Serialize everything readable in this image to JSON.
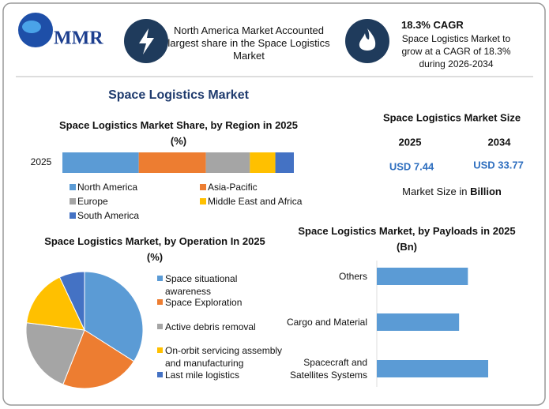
{
  "header": {
    "logo": "MMR",
    "highlight": "North America Market Accounted largest share in the Space Logistics Market",
    "cagr_title": "18.3% CAGR",
    "cagr_text": "Space Logistics Market to grow at a CAGR of 18.3% during 2026-2034"
  },
  "title": "Space Logistics Market",
  "market_size": {
    "title": "Space Logistics Market Size",
    "years": [
      "2025",
      "2034"
    ],
    "values": [
      "USD 7.44",
      "USD 33.77"
    ],
    "note": "Market Size in ",
    "note_unit": "Billion"
  },
  "chart_data": [
    {
      "type": "bar",
      "stacked": true,
      "orientation": "horizontal",
      "title": "Space Logistics Market Share, by Region in 2025 (%)",
      "categories": [
        "2025"
      ],
      "series": [
        {
          "name": "North America",
          "color": "#5b9bd5",
          "values": [
            33
          ]
        },
        {
          "name": "Asia-Pacific",
          "color": "#ed7d31",
          "values": [
            29
          ]
        },
        {
          "name": "Europe",
          "color": "#a5a5a5",
          "values": [
            19
          ]
        },
        {
          "name": "Middle East and Africa",
          "color": "#ffc000",
          "values": [
            11
          ]
        },
        {
          "name": "South America",
          "color": "#4472c4",
          "values": [
            8
          ]
        }
      ]
    },
    {
      "type": "pie",
      "title": "Space Logistics Market, by Operation In 2025 (%)",
      "categories": [
        "Space situational awareness",
        "Space Exploration",
        "Active debris removal",
        "On-orbit servicing assembly and manufacturing",
        "Last mile logistics"
      ],
      "values": [
        34,
        22,
        21,
        16,
        7
      ],
      "colors": [
        "#5b9bd5",
        "#ed7d31",
        "#a5a5a5",
        "#ffc000",
        "#4472c4"
      ]
    },
    {
      "type": "hbar",
      "title": "Space Logistics Market, by Payloads in 2025 (Bn)",
      "categories": [
        "Others",
        "Cargo and Material",
        "Spacecraft and Satellites Systems"
      ],
      "values": [
        2.38,
        2.15,
        2.91
      ],
      "color": "#5b9bd5"
    }
  ]
}
